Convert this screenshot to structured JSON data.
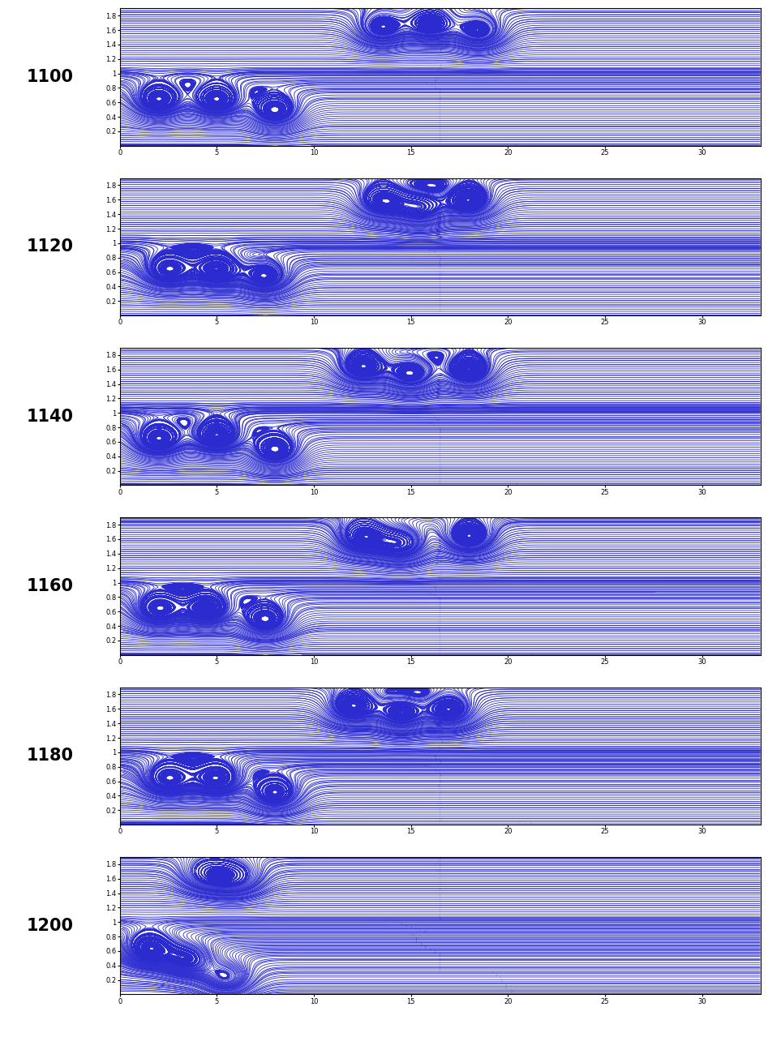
{
  "chart_data": [
    {
      "type": "streamplot",
      "title": "1100",
      "color": "#2b2bd0",
      "xlim": [
        0,
        33
      ],
      "ylim": [
        0,
        1.9
      ],
      "xticks": [
        0,
        5,
        10,
        15,
        20,
        25,
        30
      ],
      "yticks": [
        0.2,
        0.4,
        0.6,
        0.8,
        1,
        1.2,
        1.4,
        1.6,
        1.8
      ],
      "vortices": [
        {
          "x": 13.5,
          "y": 1.6
        },
        {
          "x": 16,
          "y": 1.65
        },
        {
          "x": 18.5,
          "y": 1.55
        },
        {
          "x": 2,
          "y": 0.6
        },
        {
          "x": 5,
          "y": 0.6
        },
        {
          "x": 8,
          "y": 0.45
        }
      ]
    },
    {
      "type": "streamplot",
      "title": "1120",
      "color": "#2b2bd0",
      "xlim": [
        0,
        33
      ],
      "ylim": [
        0,
        1.9
      ],
      "xticks": [
        0,
        5,
        10,
        15,
        20,
        25,
        30
      ],
      "yticks": [
        0.2,
        0.4,
        0.6,
        0.8,
        1,
        1.2,
        1.4,
        1.6,
        1.8
      ],
      "vortices": [
        {
          "x": 13.5,
          "y": 1.55
        },
        {
          "x": 15.5,
          "y": 1.45
        },
        {
          "x": 18,
          "y": 1.55
        },
        {
          "x": 2.5,
          "y": 0.6
        },
        {
          "x": 5,
          "y": 0.6
        },
        {
          "x": 7.5,
          "y": 0.5
        }
      ]
    },
    {
      "type": "streamplot",
      "title": "1140",
      "color": "#2b2bd0",
      "xlim": [
        0,
        33
      ],
      "ylim": [
        0,
        1.9
      ],
      "xticks": [
        0,
        5,
        10,
        15,
        20,
        25,
        30
      ],
      "yticks": [
        0.2,
        0.4,
        0.6,
        0.8,
        1,
        1.2,
        1.4,
        1.6,
        1.8
      ],
      "vortices": [
        {
          "x": 12.5,
          "y": 1.6
        },
        {
          "x": 15,
          "y": 1.5
        },
        {
          "x": 18,
          "y": 1.55
        },
        {
          "x": 2,
          "y": 0.6
        },
        {
          "x": 5,
          "y": 0.65
        },
        {
          "x": 8,
          "y": 0.45
        }
      ]
    },
    {
      "type": "streamplot",
      "title": "1160",
      "color": "#2b2bd0",
      "xlim": [
        0,
        33
      ],
      "ylim": [
        0,
        1.9
      ],
      "xticks": [
        0,
        5,
        10,
        15,
        20,
        25,
        30
      ],
      "yticks": [
        0.2,
        0.4,
        0.6,
        0.8,
        1,
        1.2,
        1.4,
        1.6,
        1.8
      ],
      "vortices": [
        {
          "x": 12.5,
          "y": 1.6
        },
        {
          "x": 14.5,
          "y": 1.5
        },
        {
          "x": 18,
          "y": 1.6
        },
        {
          "x": 2,
          "y": 0.6
        },
        {
          "x": 4.5,
          "y": 0.6
        },
        {
          "x": 7.5,
          "y": 0.45
        }
      ]
    },
    {
      "type": "streamplot",
      "title": "1180",
      "color": "#2b2bd0",
      "xlim": [
        0,
        33
      ],
      "ylim": [
        0,
        1.9
      ],
      "xticks": [
        0,
        5,
        10,
        15,
        20,
        25,
        30
      ],
      "yticks": [
        0.2,
        0.4,
        0.6,
        0.8,
        1,
        1.2,
        1.4,
        1.6,
        1.8
      ],
      "vortices": [
        {
          "x": 12,
          "y": 1.6
        },
        {
          "x": 14.5,
          "y": 1.5
        },
        {
          "x": 17,
          "y": 1.55
        },
        {
          "x": 2.5,
          "y": 0.6
        },
        {
          "x": 5,
          "y": 0.6
        },
        {
          "x": 8,
          "y": 0.4
        }
      ]
    },
    {
      "type": "streamplot",
      "title": "1200",
      "color": "#2b2bd0",
      "xlim": [
        0,
        33
      ],
      "ylim": [
        0,
        1.9
      ],
      "xticks": [
        0,
        5,
        10,
        15,
        20,
        25,
        30
      ],
      "yticks": [
        0.2,
        0.4,
        0.6,
        0.8,
        1,
        1.2,
        1.4,
        1.6,
        1.8
      ],
      "vortices": [
        {
          "x": 4.5,
          "y": 1.65
        },
        {
          "x": 6,
          "y": 1.6
        },
        {
          "x": 1.5,
          "y": 0.6
        },
        {
          "x": 3.5,
          "y": 0.45
        },
        {
          "x": 5.5,
          "y": 0.2
        }
      ]
    }
  ]
}
